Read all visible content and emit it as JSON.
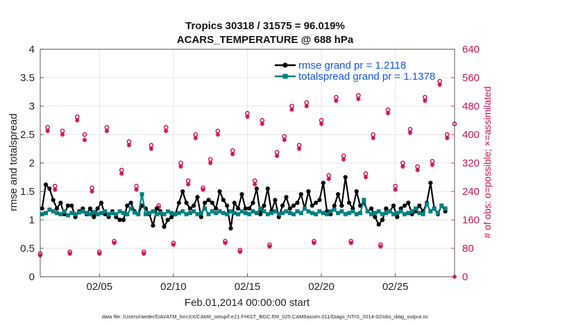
{
  "chart_data": {
    "type": "line",
    "title_line1": "Tropics 30318 / 31575 = 96.019%",
    "title_line2": "ACARS_TEMPERATURE @ 688 hPa",
    "xlabel": "Feb.01,2014 00:00:00 start",
    "ylabel": "rmse and totalspread",
    "ylabel_right": "# of obs: o=possible; ×=assimilated",
    "xlim": [
      1,
      29
    ],
    "ylim": [
      0,
      4
    ],
    "ylim_right": [
      0,
      640
    ],
    "x_ticks": [
      5,
      10,
      15,
      20,
      25
    ],
    "x_tick_labels": [
      "02/05",
      "02/10",
      "02/15",
      "02/20",
      "02/25"
    ],
    "y_ticks": [
      "0",
      "0.5",
      "1",
      "1.5",
      "2",
      "2.5",
      "3",
      "3.5",
      "4"
    ],
    "y_ticks_right": [
      "0",
      "80",
      "160",
      "240",
      "320",
      "400",
      "480",
      "560",
      "640"
    ],
    "legend": [
      "rmse grand pr = 1.2118",
      "totalspread grand pr = 1.1378"
    ],
    "footer": "data file: /Users/raeder/DAI/ATM_forcXX/CAM6_setup/f.e21.FHIST_BGC.f09_025.CAM6assim.011/Diags_NTrS_2014-02/obs_diag_output.nc",
    "series": [
      {
        "name": "rmse",
        "color": "#000000",
        "x": [
          1.125,
          1.375,
          1.625,
          1.875,
          2.125,
          2.375,
          2.625,
          2.875,
          3.125,
          3.375,
          3.625,
          3.875,
          4.125,
          4.375,
          4.625,
          4.875,
          5.125,
          5.375,
          5.625,
          5.875,
          6.125,
          6.375,
          6.625,
          6.875,
          7.125,
          7.375,
          7.625,
          7.875,
          8.125,
          8.375,
          8.625,
          8.875,
          9.125,
          9.375,
          9.625,
          9.875,
          10.125,
          10.375,
          10.625,
          10.875,
          11.125,
          11.375,
          11.625,
          11.875,
          12.125,
          12.375,
          12.625,
          12.875,
          13.125,
          13.375,
          13.625,
          13.875,
          14.125,
          14.375,
          14.625,
          14.875,
          15.125,
          15.375,
          15.625,
          15.875,
          16.125,
          16.375,
          16.625,
          16.875,
          17.125,
          17.375,
          17.625,
          17.875,
          18.125,
          18.375,
          18.625,
          18.875,
          19.125,
          19.375,
          19.625,
          19.875,
          20.125,
          20.375,
          20.625,
          20.875,
          21.125,
          21.375,
          21.625,
          21.875,
          22.125,
          22.375,
          22.625,
          22.875,
          23.125,
          23.375,
          23.625,
          23.875,
          24.125,
          24.375,
          24.625,
          24.875,
          25.125,
          25.375,
          25.625,
          25.875,
          26.125,
          26.375,
          26.625,
          26.875,
          27.125,
          27.375,
          27.625,
          27.875,
          28.125,
          28.375
        ],
        "values": [
          1.2,
          1.62,
          1.55,
          1.35,
          1.2,
          1.3,
          1.1,
          1.25,
          1.25,
          1.05,
          1.15,
          1.2,
          1.1,
          1.2,
          1.05,
          1.2,
          1.3,
          1.1,
          1.05,
          1.15,
          1.05,
          1.0,
          1.0,
          1.25,
          1.3,
          1.15,
          1.1,
          1.25,
          1.2,
          1.1,
          0.9,
          1.2,
          1.15,
          0.88,
          1.0,
          1.05,
          1.1,
          1.3,
          1.5,
          1.3,
          1.2,
          1.25,
          1.4,
          1.05,
          1.3,
          1.35,
          1.3,
          1.2,
          1.5,
          1.35,
          1.25,
          0.85,
          1.3,
          1.2,
          1.45,
          1.2,
          1.2,
          1.3,
          1.55,
          1.1,
          1.25,
          1.55,
          1.15,
          1.35,
          1.05,
          1.25,
          1.4,
          1.2,
          1.25,
          1.3,
          1.45,
          1.2,
          1.5,
          1.25,
          1.3,
          1.35,
          1.65,
          1.15,
          1.1,
          1.25,
          1.45,
          1.25,
          1.75,
          1.3,
          1.2,
          1.5,
          1.25,
          1.3,
          1.15,
          1.2,
          1.05,
          0.92,
          1.0,
          1.2,
          1.15,
          1.25,
          1.05,
          1.2,
          1.25,
          1.3,
          1.1,
          1.15,
          1.25,
          1.15,
          1.3,
          1.65,
          1.2,
          1.1,
          1.25,
          1.15
        ]
      },
      {
        "name": "totalspread",
        "color": "#008080",
        "x": [
          1.125,
          1.375,
          1.625,
          1.875,
          2.125,
          2.375,
          2.625,
          2.875,
          3.125,
          3.375,
          3.625,
          3.875,
          4.125,
          4.375,
          4.625,
          4.875,
          5.125,
          5.375,
          5.625,
          5.875,
          6.125,
          6.375,
          6.625,
          6.875,
          7.125,
          7.375,
          7.625,
          7.875,
          8.125,
          8.375,
          8.625,
          8.875,
          9.125,
          9.375,
          9.625,
          9.875,
          10.125,
          10.375,
          10.625,
          10.875,
          11.125,
          11.375,
          11.625,
          11.875,
          12.125,
          12.375,
          12.625,
          12.875,
          13.125,
          13.375,
          13.625,
          13.875,
          14.125,
          14.375,
          14.625,
          14.875,
          15.125,
          15.375,
          15.625,
          15.875,
          16.125,
          16.375,
          16.625,
          16.875,
          17.125,
          17.375,
          17.625,
          17.875,
          18.125,
          18.375,
          18.625,
          18.875,
          19.125,
          19.375,
          19.625,
          19.875,
          20.125,
          20.375,
          20.625,
          20.875,
          21.125,
          21.375,
          21.625,
          21.875,
          22.125,
          22.375,
          22.625,
          22.875,
          23.125,
          23.375,
          23.625,
          23.875,
          24.125,
          24.375,
          24.625,
          24.875,
          25.125,
          25.375,
          25.625,
          25.875,
          26.125,
          26.375,
          26.625,
          26.875,
          27.125,
          27.375,
          27.625,
          27.875,
          28.125,
          28.375
        ],
        "values": [
          1.1,
          1.12,
          1.18,
          1.15,
          1.12,
          1.1,
          1.15,
          1.08,
          1.12,
          1.1,
          1.13,
          1.15,
          1.12,
          1.1,
          1.14,
          1.1,
          1.12,
          1.15,
          1.1,
          1.12,
          1.1,
          1.15,
          1.12,
          1.1,
          1.2,
          1.13,
          1.1,
          1.45,
          1.1,
          1.12,
          1.15,
          1.1,
          1.12,
          1.1,
          1.15,
          1.12,
          1.1,
          1.12,
          1.15,
          1.1,
          1.12,
          1.15,
          1.1,
          1.12,
          1.2,
          1.1,
          1.15,
          1.12,
          1.15,
          1.12,
          1.1,
          1.15,
          1.12,
          1.1,
          1.15,
          1.12,
          1.1,
          1.15,
          1.12,
          1.2,
          1.15,
          1.1,
          1.12,
          1.15,
          1.1,
          1.12,
          1.15,
          1.12,
          1.1,
          1.15,
          1.12,
          1.2,
          1.15,
          1.12,
          1.1,
          1.15,
          1.12,
          1.1,
          1.15,
          1.18,
          1.12,
          1.15,
          1.1,
          1.12,
          1.15,
          1.1,
          1.12,
          1.35,
          1.15,
          1.1,
          1.12,
          1.15,
          1.1,
          1.12,
          1.15,
          1.1,
          1.12,
          1.15,
          1.1,
          1.12,
          1.15,
          1.2,
          1.12,
          1.1,
          1.28,
          1.15,
          1.2,
          1.12,
          1.25,
          1.2
        ]
      }
    ],
    "obs_possible": {
      "name": "possible obs (o)",
      "color": "#cc1155",
      "x": [
        1,
        1.5,
        2,
        2.5,
        3,
        3.5,
        4,
        4.5,
        5,
        5.5,
        6,
        6.5,
        7,
        7.5,
        8,
        8.5,
        9,
        9.5,
        10,
        10.5,
        11,
        11.5,
        12,
        12.5,
        13,
        13.5,
        14,
        14.5,
        15,
        15.5,
        16,
        16.5,
        17,
        17.5,
        18,
        18.5,
        19,
        19.5,
        20,
        20.5,
        21,
        21.5,
        22,
        22.5,
        23,
        23.5,
        24,
        24.5,
        25,
        25.5,
        26,
        26.5,
        27,
        27.5,
        28,
        28.5,
        29
      ],
      "values": [
        65,
        420,
        255,
        410,
        70,
        450,
        400,
        250,
        70,
        420,
        100,
        300,
        380,
        255,
        70,
        370,
        200,
        420,
        95,
        320,
        270,
        400,
        250,
        330,
        410,
        100,
        355,
        75,
        460,
        270,
        440,
        90,
        350,
        395,
        480,
        370,
        490,
        100,
        440,
        285,
        505,
        340,
        100,
        510,
        290,
        400,
        90,
        470,
        255,
        320,
        415,
        310,
        505,
        325,
        550,
        400,
        430
      ]
    },
    "obs_assimilated": {
      "name": "assimilated obs (x)",
      "color": "#cc1155",
      "x": [
        1,
        1.5,
        2,
        2.5,
        3,
        3.5,
        4,
        4.5,
        5,
        5.5,
        6,
        6.5,
        7,
        7.5,
        8,
        8.5,
        9,
        9.5,
        10,
        10.5,
        11,
        11.5,
        12,
        12.5,
        13,
        13.5,
        14,
        14.5,
        15,
        15.5,
        16,
        16.5,
        17,
        17.5,
        18,
        18.5,
        19,
        19.5,
        20,
        20.5,
        21,
        21.5,
        22,
        22.5,
        23,
        23.5,
        24,
        24.5,
        25,
        25.5,
        26,
        26.5,
        27,
        27.5,
        28,
        28.5,
        29
      ],
      "values": [
        60,
        410,
        245,
        400,
        65,
        440,
        385,
        240,
        65,
        410,
        95,
        290,
        370,
        245,
        65,
        360,
        195,
        410,
        90,
        310,
        260,
        390,
        245,
        320,
        400,
        95,
        345,
        70,
        450,
        260,
        430,
        85,
        340,
        385,
        470,
        360,
        480,
        95,
        430,
        275,
        495,
        330,
        95,
        500,
        280,
        390,
        85,
        460,
        245,
        310,
        405,
        300,
        495,
        315,
        540,
        390,
        0
      ]
    }
  }
}
